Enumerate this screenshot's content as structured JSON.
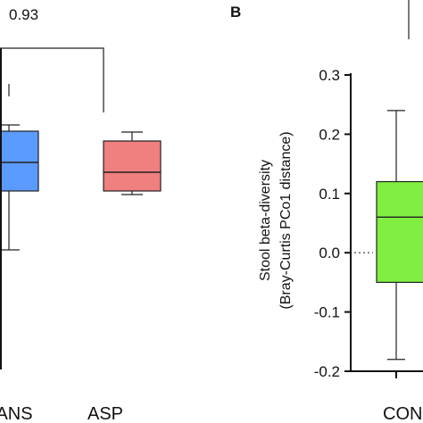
{
  "chart_data": [
    {
      "type": "box",
      "panel_label": "",
      "annotation": {
        "text": "0.93"
      },
      "categories": [
        "ANS",
        "ASP"
      ],
      "tick_labels": [
        "ANS",
        "ASP"
      ],
      "boxes": [
        {
          "category": "ANS",
          "whisker_low": -0.12,
          "q1": 0.04,
          "median": 0.12,
          "q3": 0.18,
          "whisker_high": 0.25,
          "color": "#5b9bff"
        },
        {
          "category": "ASP",
          "whisker_low": 0.05,
          "q1": 0.06,
          "median": 0.09,
          "q3": 0.14,
          "whisker_high": 0.18,
          "color": "#f07f7f"
        }
      ],
      "colors": {
        "ANS": "#5b9bff",
        "ASP": "#f07f7f"
      }
    },
    {
      "type": "box",
      "panel_label": "B",
      "ylabel": "Stool beta-diversity\n(Bray-Curtis PCo1 distance)",
      "ylim": [
        -0.2,
        0.3
      ],
      "yticks": [
        -0.2,
        -0.1,
        0.0,
        0.1,
        0.2,
        0.3
      ],
      "ytick_labels": [
        "-0.2",
        "-0.1",
        "0.0",
        "0.1",
        "0.2",
        "0.3"
      ],
      "categories": [
        "CONTROL"
      ],
      "tick_labels": [
        "CON"
      ],
      "boxes": [
        {
          "category": "CONTROL",
          "whisker_low": -0.18,
          "q1": -0.05,
          "median": 0.06,
          "q3": 0.12,
          "whisker_high": 0.24,
          "color": "#80ee40"
        }
      ],
      "colors": {
        "CONTROL": "#80ee40"
      }
    }
  ]
}
